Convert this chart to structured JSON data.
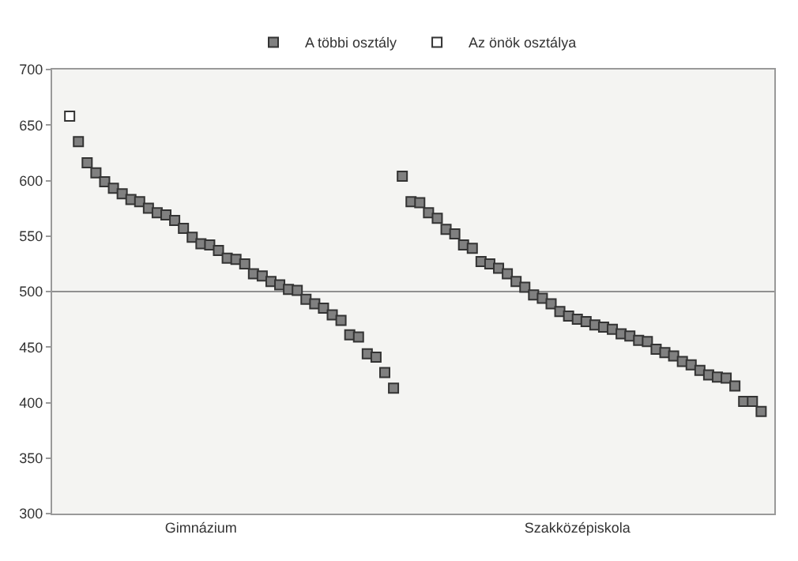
{
  "chart_data": {
    "type": "scatter",
    "marker": "square",
    "legend": "top",
    "grid": false,
    "categories": [
      null,
      null,
      null,
      null,
      null,
      null,
      null,
      null,
      null,
      null,
      null,
      null,
      null,
      null,
      null,
      "Gimnázium",
      null,
      null,
      null,
      null,
      null,
      null,
      null,
      null,
      null,
      null,
      null,
      null,
      null,
      null,
      null,
      null,
      null,
      null,
      null,
      null,
      null,
      null,
      null,
      null,
      null,
      null,
      null,
      null,
      null,
      null,
      null,
      null,
      null,
      null,
      null,
      null,
      null,
      null,
      null,
      null,
      null,
      null,
      "Szakközépiskola",
      null,
      null,
      null,
      null,
      null,
      null,
      null,
      null,
      null,
      null,
      null,
      null,
      null,
      null,
      null,
      null,
      null,
      null,
      null,
      null,
      null
    ],
    "ylim": [
      300,
      700
    ],
    "yticks": [
      300,
      350,
      400,
      450,
      500,
      550,
      600,
      650,
      700
    ],
    "ref_lines": [
      {
        "axis": "y",
        "value": 500,
        "color": "#909090"
      }
    ],
    "series": [
      {
        "name": "A többi osztály",
        "color": "#808080",
        "values": [
          null,
          635,
          616,
          607,
          599,
          593,
          588,
          583,
          581,
          575,
          571,
          569,
          564,
          557,
          549,
          543,
          542,
          537,
          530,
          529,
          525,
          516,
          514,
          509,
          506,
          502,
          501,
          493,
          489,
          485,
          479,
          474,
          461,
          459,
          444,
          441,
          427,
          413,
          604,
          581,
          580,
          571,
          566,
          556,
          552,
          542,
          539,
          527,
          525,
          521,
          516,
          509,
          504,
          497,
          494,
          489,
          482,
          478,
          475,
          473,
          470,
          468,
          466,
          462,
          460,
          456,
          455,
          448,
          445,
          442,
          437,
          434,
          429,
          425,
          423,
          422,
          415,
          401,
          401,
          392
        ]
      },
      {
        "name": "Az önök osztálya",
        "color": "#ffffff",
        "values": [
          658,
          null,
          null,
          null,
          null,
          null,
          null,
          null,
          null,
          null,
          null,
          null,
          null,
          null,
          null,
          null,
          null,
          null,
          null,
          null,
          null,
          null,
          null,
          null,
          null,
          null,
          null,
          null,
          null,
          null,
          null,
          null,
          null,
          null,
          null,
          null,
          null,
          null,
          null,
          null,
          null,
          null,
          null,
          null,
          null,
          null,
          null,
          null,
          null,
          null,
          null,
          null,
          null,
          null,
          null,
          null,
          null,
          null,
          null,
          null,
          null,
          null,
          null,
          null,
          null,
          null,
          null,
          null,
          null,
          null,
          null,
          null,
          null,
          null,
          null,
          null,
          null,
          null,
          null,
          null
        ]
      }
    ]
  }
}
